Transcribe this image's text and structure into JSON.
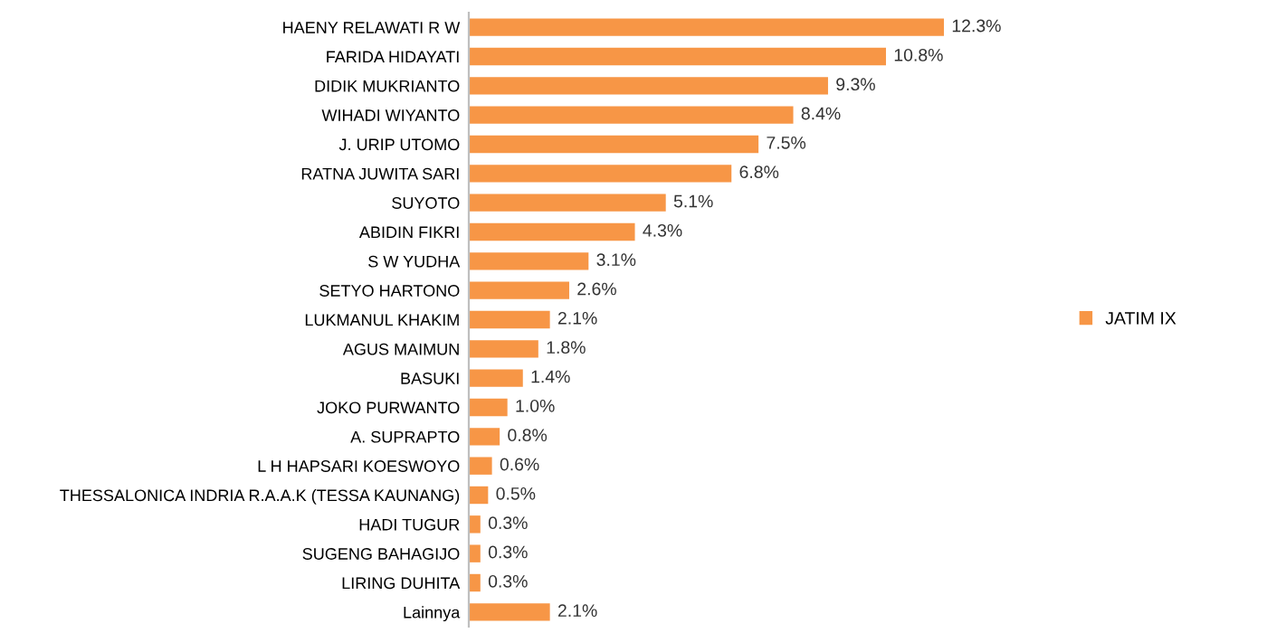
{
  "chart_data": {
    "type": "bar",
    "orientation": "horizontal",
    "categories": [
      "HAENY RELAWATI R W",
      "FARIDA HIDAYATI",
      "DIDIK MUKRIANTO",
      "WIHADI WIYANTO",
      "J. URIP UTOMO",
      "RATNA JUWITA SARI",
      "SUYOTO",
      "ABIDIN FIKRI",
      "S W YUDHA",
      "SETYO HARTONO",
      "LUKMANUL KHAKIM",
      "AGUS MAIMUN",
      "BASUKI",
      "JOKO PURWANTO",
      "A. SUPRAPTO",
      "L H HAPSARI KOESWOYO",
      "THESSALONICA INDRIA R.A.A.K (TESSA KAUNANG)",
      "HADI TUGUR",
      "SUGENG BAHAGIJO",
      "LIRING DUHITA",
      "Lainnya"
    ],
    "series": [
      {
        "name": "JATIM IX",
        "color": "#f79646",
        "values": [
          12.3,
          10.8,
          9.3,
          8.4,
          7.5,
          6.8,
          5.1,
          4.3,
          3.1,
          2.6,
          2.1,
          1.8,
          1.4,
          1.0,
          0.8,
          0.6,
          0.5,
          0.3,
          0.3,
          0.3,
          2.1
        ],
        "value_labels": [
          "12.3%",
          "10.8%",
          "9.3%",
          "8.4%",
          "7.5%",
          "6.8%",
          "5.1%",
          "4.3%",
          "3.1%",
          "2.6%",
          "2.1%",
          "1.8%",
          "1.4%",
          "1.0%",
          "0.8%",
          "0.6%",
          "0.5%",
          "0.3%",
          "0.3%",
          "0.3%",
          "2.1%"
        ]
      }
    ],
    "legend": "right",
    "grid": false
  }
}
